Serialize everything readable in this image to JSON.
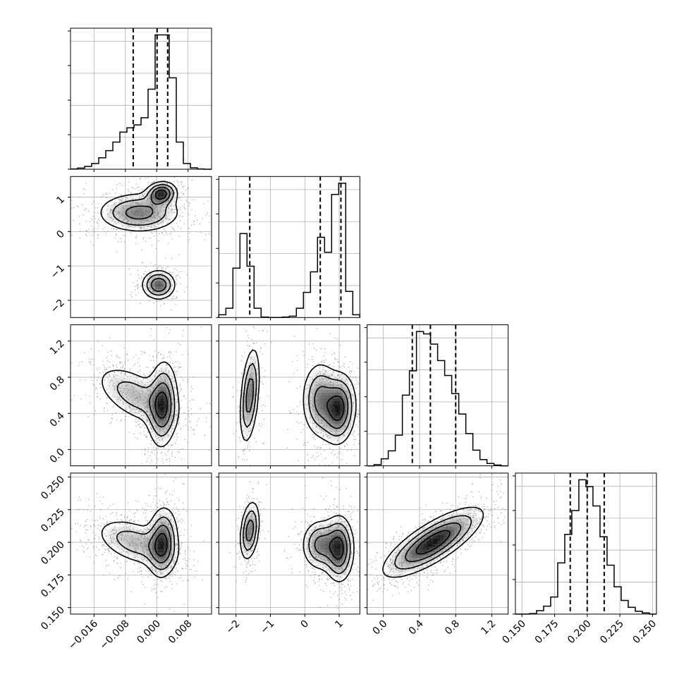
{
  "chart_data": {
    "type": "corner",
    "title": "",
    "grid": true,
    "parameters": [
      {
        "xlabel": "",
        "range": [
          -0.022,
          0.014
        ],
        "ticks": [
          -0.016,
          -0.008,
          0.0,
          0.008
        ],
        "tick_labels": [
          "−0.016",
          "−0.008",
          "0.000",
          "0.008"
        ],
        "quantiles": [
          -0.006,
          0.0001,
          0.0028
        ],
        "hist_edges": [
          -0.022,
          -0.0202,
          -0.0184,
          -0.0166,
          -0.0148,
          -0.013,
          -0.0112,
          -0.0094,
          -0.0076,
          -0.0058,
          -0.004,
          -0.0022,
          -0.0004,
          0.0014,
          0.0032,
          0.005,
          0.0068,
          0.0086,
          0.0104,
          0.0122,
          0.014
        ],
        "hist_counts": [
          0.2,
          0.8,
          2.0,
          4.0,
          8.0,
          13.0,
          19.0,
          26.0,
          29.0,
          31.0,
          36.0,
          56.0,
          94.0,
          94.0,
          64.0,
          19.0,
          4.0,
          1.0,
          0.2,
          0.0
        ]
      },
      {
        "xlabel": "",
        "range": [
          -2.5,
          1.6
        ],
        "ticks": [
          -2,
          -1,
          0,
          1
        ],
        "tick_labels": [
          "−2",
          "−1",
          "0",
          "1"
        ],
        "quantiles": [
          -1.6,
          0.45,
          1.05
        ],
        "hist_edges": [
          -2.5,
          -2.295,
          -2.09,
          -1.885,
          -1.68,
          -1.475,
          -1.27,
          -1.065,
          -0.86,
          -0.655,
          -0.45,
          -0.245,
          -0.04,
          0.165,
          0.37,
          0.575,
          0.78,
          0.985,
          1.19,
          1.395,
          1.6
        ],
        "hist_counts": [
          3.0,
          10.0,
          53.0,
          90.0,
          55.0,
          10.0,
          0.5,
          0.0,
          0.0,
          0.5,
          1.5,
          10.0,
          27.0,
          49.0,
          86.0,
          70.0,
          132.0,
          144.0,
          28.0,
          3.0
        ]
      },
      {
        "xlabel": "",
        "range": [
          -0.18,
          1.38
        ],
        "ticks": [
          0.0,
          0.4,
          0.8,
          1.2
        ],
        "tick_labels": [
          "0.0",
          "0.4",
          "0.8",
          "1.2"
        ],
        "quantiles": [
          0.32,
          0.52,
          0.8
        ],
        "hist_edges": [
          -0.18,
          -0.102,
          -0.024,
          0.054,
          0.132,
          0.21,
          0.288,
          0.366,
          0.444,
          0.522,
          0.6,
          0.678,
          0.756,
          0.834,
          0.912,
          0.99,
          1.068,
          1.146,
          1.224,
          1.302,
          1.38
        ],
        "hist_counts": [
          0.0,
          1.5,
          9.0,
          19.0,
          39.0,
          90.0,
          121.0,
          171.0,
          168.0,
          155.0,
          134.0,
          115.0,
          92.0,
          66.0,
          41.0,
          20.0,
          8.0,
          3.0,
          1.0,
          0.0
        ]
      },
      {
        "xlabel": "",
        "range": [
          0.145,
          0.253
        ],
        "ticks": [
          0.15,
          0.175,
          0.2,
          0.225,
          0.25
        ],
        "tick_labels": [
          "0.150",
          "0.175",
          "0.200",
          "0.225",
          "0.250"
        ],
        "quantiles": [
          0.187,
          0.2,
          0.213
        ],
        "hist_edges": [
          0.145,
          0.1504,
          0.1558,
          0.1612,
          0.1666,
          0.172,
          0.1774,
          0.1828,
          0.1882,
          0.1936,
          0.199,
          0.2044,
          0.2098,
          0.2152,
          0.2206,
          0.226,
          0.2314,
          0.2368,
          0.2422,
          0.2476,
          0.253
        ],
        "hist_counts": [
          0.0,
          0.0,
          0.5,
          3.0,
          7.0,
          15.0,
          45.0,
          70.0,
          91.0,
          118.0,
          112.0,
          95.0,
          68.0,
          43.0,
          24.0,
          12.0,
          6.0,
          2.5,
          1.0,
          0.0
        ]
      }
    ],
    "density_2d": [
      {
        "x_param": 0,
        "y_param": 1,
        "components": [
          {
            "x": -0.0045,
            "y": 0.55,
            "sx": 0.0055,
            "sy": 0.3,
            "rho": 0.0,
            "w": 0.5
          },
          {
            "x": 0.0012,
            "y": 1.1,
            "sx": 0.002,
            "sy": 0.18,
            "rho": 0.1,
            "w": 0.7
          },
          {
            "x": 0.0005,
            "y": -1.55,
            "sx": 0.0022,
            "sy": 0.22,
            "rho": 0.0,
            "w": 0.6
          }
        ]
      },
      {
        "x_param": 0,
        "y_param": 2,
        "components": [
          {
            "x": -0.0055,
            "y": 0.6,
            "sx": 0.0055,
            "sy": 0.18,
            "rho": -0.55,
            "w": 0.45
          },
          {
            "x": 0.0015,
            "y": 0.5,
            "sx": 0.002,
            "sy": 0.25,
            "rho": 0.1,
            "w": 0.8
          }
        ]
      },
      {
        "x_param": 1,
        "y_param": 2,
        "components": [
          {
            "x": -1.6,
            "y": 0.6,
            "sx": 0.15,
            "sy": 0.28,
            "rho": 0.4,
            "w": 0.55
          },
          {
            "x": 0.45,
            "y": 0.55,
            "sx": 0.28,
            "sy": 0.22,
            "rho": 0.0,
            "w": 0.5
          },
          {
            "x": 1.0,
            "y": 0.45,
            "sx": 0.25,
            "sy": 0.2,
            "rho": 0.1,
            "w": 0.7
          }
        ]
      },
      {
        "x_param": 0,
        "y_param": 3,
        "components": [
          {
            "x": -0.0055,
            "y": 0.2,
            "sx": 0.0055,
            "sy": 0.01,
            "rho": -0.45,
            "w": 0.45
          },
          {
            "x": 0.0015,
            "y": 0.2,
            "sx": 0.002,
            "sy": 0.014,
            "rho": 0.1,
            "w": 0.8
          }
        ]
      },
      {
        "x_param": 1,
        "y_param": 3,
        "components": [
          {
            "x": -1.6,
            "y": 0.209,
            "sx": 0.15,
            "sy": 0.012,
            "rho": 0.3,
            "w": 0.55
          },
          {
            "x": 0.45,
            "y": 0.198,
            "sx": 0.28,
            "sy": 0.01,
            "rho": 0.0,
            "w": 0.5
          },
          {
            "x": 1.0,
            "y": 0.195,
            "sx": 0.22,
            "sy": 0.013,
            "rho": 0.0,
            "w": 0.7
          }
        ]
      },
      {
        "x_param": 2,
        "y_param": 3,
        "components": [
          {
            "x": 0.55,
            "y": 0.2,
            "sx": 0.28,
            "sy": 0.0135,
            "rho": 0.78,
            "w": 1.0
          }
        ]
      }
    ]
  }
}
